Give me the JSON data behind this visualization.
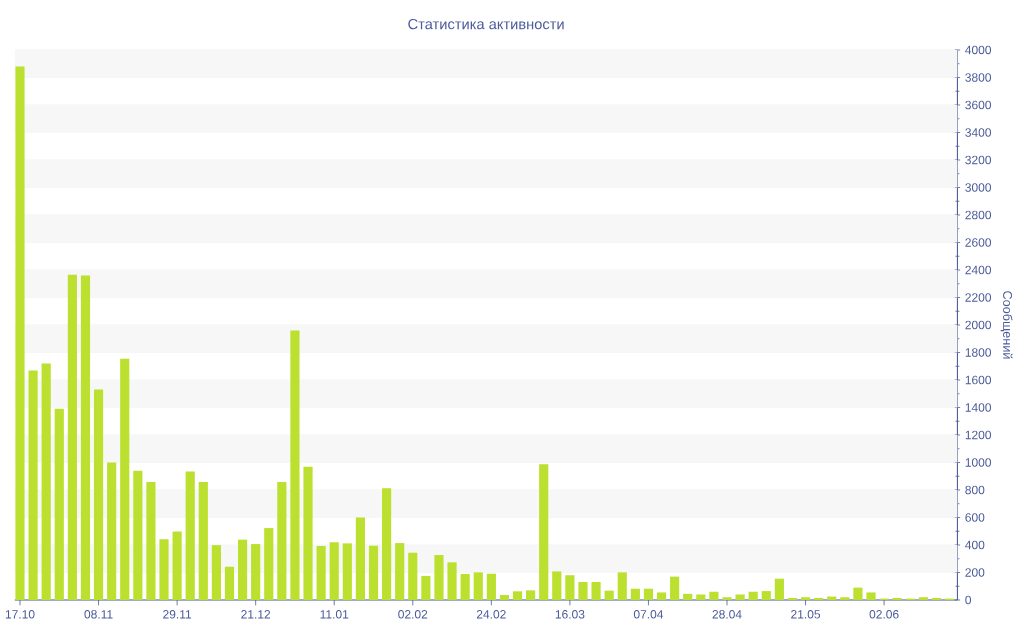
{
  "chart_data": {
    "type": "bar",
    "title": "Статистика активности",
    "ylabel": "Сообщений",
    "categories": [
      "17.10",
      null,
      null,
      null,
      null,
      null,
      "08.11",
      null,
      null,
      null,
      null,
      null,
      "29.11",
      null,
      null,
      null,
      null,
      null,
      "21.12",
      null,
      null,
      null,
      null,
      null,
      "11.01",
      null,
      null,
      null,
      null,
      null,
      "02.02",
      null,
      null,
      null,
      null,
      null,
      "24.02",
      null,
      null,
      null,
      null,
      null,
      "16.03",
      null,
      null,
      null,
      null,
      null,
      "07.04",
      null,
      null,
      null,
      null,
      null,
      "28.04",
      null,
      null,
      null,
      null,
      null,
      "21.05",
      null,
      null,
      null,
      null,
      null,
      "02.06",
      null,
      null,
      null,
      null,
      null
    ],
    "values": [
      3880,
      1670,
      1720,
      1390,
      2365,
      2360,
      1530,
      1000,
      1755,
      940,
      858,
      442,
      498,
      935,
      858,
      399,
      242,
      439,
      407,
      523,
      858,
      1960,
      970,
      393,
      420,
      412,
      600,
      395,
      812,
      414,
      344,
      175,
      327,
      274,
      189,
      201,
      191,
      36,
      63,
      70,
      987,
      208,
      180,
      131,
      131,
      68,
      201,
      82,
      82,
      55,
      170,
      45,
      40,
      60,
      20,
      40,
      60,
      65,
      155,
      15,
      20,
      15,
      25,
      20,
      90,
      55,
      10,
      15,
      10,
      20,
      15,
      10
    ],
    "color": "#bbe02f",
    "ylim": [
      0,
      4000
    ],
    "yticks": [
      0,
      200,
      400,
      600,
      800,
      1000,
      1200,
      1400,
      1600,
      1800,
      2000,
      2200,
      2400,
      2600,
      2800,
      3000,
      3200,
      3400,
      3600,
      3800,
      4000
    ],
    "grid": "y"
  }
}
